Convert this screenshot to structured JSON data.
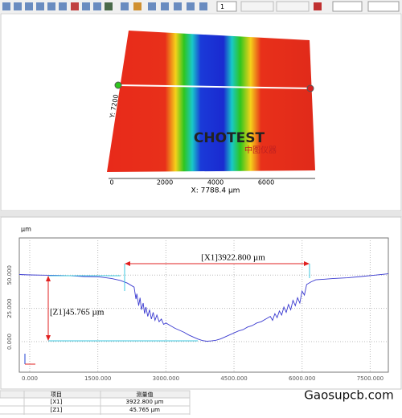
{
  "toolbar": {
    "layer": "1"
  },
  "view3d": {
    "x_ticks": [
      "0",
      "2000",
      "4000",
      "6000"
    ],
    "x_label": "X: 7788.4 µm",
    "y_label": "Y: 7200",
    "logo": "CHOTEST",
    "logo_sub": "中图仪器"
  },
  "chart_data": {
    "type": "line",
    "y_unit": "µm",
    "x": [
      -230,
      0,
      300,
      600,
      900,
      1200,
      1500,
      1800,
      2000,
      2150,
      2300,
      2340,
      2360,
      2400,
      2430,
      2460,
      2500,
      2530,
      2560,
      2600,
      2640,
      2680,
      2720,
      2760,
      2800,
      2850,
      2900,
      2950,
      3000,
      3100,
      3200,
      3300,
      3400,
      3500,
      3600,
      3700,
      3800,
      3900,
      4000,
      4100,
      4200,
      4300,
      4400,
      4500,
      4600,
      4700,
      4800,
      4900,
      5000,
      5100,
      5200,
      5300,
      5350,
      5400,
      5450,
      5500,
      5550,
      5600,
      5650,
      5700,
      5750,
      5800,
      5850,
      5900,
      5950,
      6000,
      6050,
      6100,
      6200,
      6300,
      6500,
      6700,
      7000,
      7300,
      7600,
      7900
    ],
    "values": [
      50.5,
      50.2,
      50,
      49.8,
      49.5,
      49,
      48.8,
      47.5,
      46,
      44,
      41,
      32,
      36,
      27,
      33,
      24,
      29,
      21,
      26,
      19,
      24,
      17,
      22,
      16,
      20,
      15,
      17,
      13,
      14,
      12,
      10,
      8.5,
      7,
      5,
      3.5,
      2,
      0.8,
      0.3,
      0.5,
      1,
      2,
      3.5,
      5,
      6.5,
      8,
      9,
      11,
      12,
      14,
      15,
      17,
      19,
      16,
      21,
      18,
      23,
      20,
      26,
      22,
      28,
      24,
      31,
      27,
      33,
      29,
      38,
      35,
      43,
      45,
      46.5,
      47,
      47.5,
      48,
      49,
      50,
      51
    ],
    "color": "#3a3ad0",
    "xlim": [
      -230,
      7900
    ],
    "ylim": [
      -23,
      78
    ],
    "xticks": [
      {
        "value": 0,
        "label": "0.000"
      },
      {
        "value": 1500,
        "label": "1500.000"
      },
      {
        "value": 3000,
        "label": "3000.000"
      },
      {
        "value": 4500,
        "label": "4500.000"
      },
      {
        "value": 6000,
        "label": "6000.000"
      },
      {
        "value": 7500,
        "label": "7500.000"
      }
    ],
    "yticks": [
      {
        "value": 0,
        "label": "0.000"
      },
      {
        "value": 25,
        "label": "25.000"
      },
      {
        "value": 50,
        "label": "50.000"
      }
    ],
    "grid": true,
    "annotations": [
      "[X1]3922.800 µm",
      "[Z1]45.765 µm"
    ]
  },
  "table": {
    "header": [
      "项目",
      "测量值"
    ],
    "rows": [
      [
        "[X1]",
        "3922.800 µm"
      ],
      [
        "[Z1]",
        "45.765 µm"
      ]
    ]
  },
  "watermark": "Gaosupcb.com"
}
